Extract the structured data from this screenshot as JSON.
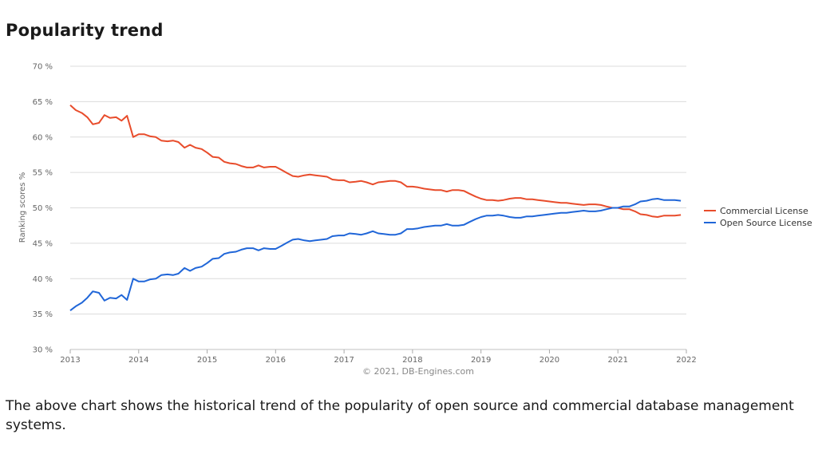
{
  "heading": "Popularity trend",
  "description": "The above chart shows the historical trend of the popularity of open source and commercial database management systems.",
  "chart_data": {
    "type": "line",
    "ylabel": "Ranking scores %",
    "credit": "© 2021, DB-Engines.com",
    "ylim": [
      30,
      70
    ],
    "xlim": [
      2013,
      2022
    ],
    "yticks": [
      {
        "v": 30,
        "label": "30 %"
      },
      {
        "v": 35,
        "label": "35 %"
      },
      {
        "v": 40,
        "label": "40 %"
      },
      {
        "v": 45,
        "label": "45 %"
      },
      {
        "v": 50,
        "label": "50 %"
      },
      {
        "v": 55,
        "label": "55 %"
      },
      {
        "v": 60,
        "label": "60 %"
      },
      {
        "v": 65,
        "label": "65 %"
      },
      {
        "v": 70,
        "label": "70 %"
      }
    ],
    "xticks": [
      {
        "v": 2013,
        "label": "2013"
      },
      {
        "v": 2014,
        "label": "2014"
      },
      {
        "v": 2015,
        "label": "2015"
      },
      {
        "v": 2016,
        "label": "2016"
      },
      {
        "v": 2017,
        "label": "2017"
      },
      {
        "v": 2018,
        "label": "2018"
      },
      {
        "v": 2019,
        "label": "2019"
      },
      {
        "v": 2020,
        "label": "2020"
      },
      {
        "v": 2021,
        "label": "2021"
      },
      {
        "v": 2022,
        "label": "2022"
      }
    ],
    "legend_position": "right",
    "series": [
      {
        "name": "Commercial License",
        "color": "#e84c2b",
        "points": [
          [
            2013.0,
            64.5
          ],
          [
            2013.08,
            63.8
          ],
          [
            2013.17,
            63.4
          ],
          [
            2013.25,
            62.8
          ],
          [
            2013.33,
            61.8
          ],
          [
            2013.42,
            62.0
          ],
          [
            2013.5,
            63.1
          ],
          [
            2013.58,
            62.7
          ],
          [
            2013.67,
            62.8
          ],
          [
            2013.75,
            62.3
          ],
          [
            2013.83,
            63.0
          ],
          [
            2013.92,
            60.0
          ],
          [
            2014.0,
            60.4
          ],
          [
            2014.08,
            60.4
          ],
          [
            2014.17,
            60.1
          ],
          [
            2014.25,
            60.0
          ],
          [
            2014.33,
            59.5
          ],
          [
            2014.42,
            59.4
          ],
          [
            2014.5,
            59.5
          ],
          [
            2014.58,
            59.3
          ],
          [
            2014.67,
            58.5
          ],
          [
            2014.75,
            58.9
          ],
          [
            2014.83,
            58.5
          ],
          [
            2014.92,
            58.3
          ],
          [
            2015.0,
            57.8
          ],
          [
            2015.08,
            57.2
          ],
          [
            2015.17,
            57.1
          ],
          [
            2015.25,
            56.5
          ],
          [
            2015.33,
            56.3
          ],
          [
            2015.42,
            56.2
          ],
          [
            2015.5,
            55.9
          ],
          [
            2015.58,
            55.7
          ],
          [
            2015.67,
            55.7
          ],
          [
            2015.75,
            56.0
          ],
          [
            2015.83,
            55.7
          ],
          [
            2015.92,
            55.8
          ],
          [
            2016.0,
            55.8
          ],
          [
            2016.08,
            55.4
          ],
          [
            2016.17,
            54.9
          ],
          [
            2016.25,
            54.5
          ],
          [
            2016.33,
            54.4
          ],
          [
            2016.42,
            54.6
          ],
          [
            2016.5,
            54.7
          ],
          [
            2016.58,
            54.6
          ],
          [
            2016.67,
            54.5
          ],
          [
            2016.75,
            54.4
          ],
          [
            2016.83,
            54.0
          ],
          [
            2016.92,
            53.9
          ],
          [
            2017.0,
            53.9
          ],
          [
            2017.08,
            53.6
          ],
          [
            2017.17,
            53.7
          ],
          [
            2017.25,
            53.8
          ],
          [
            2017.33,
            53.6
          ],
          [
            2017.42,
            53.3
          ],
          [
            2017.5,
            53.6
          ],
          [
            2017.58,
            53.7
          ],
          [
            2017.67,
            53.8
          ],
          [
            2017.75,
            53.8
          ],
          [
            2017.83,
            53.6
          ],
          [
            2017.92,
            53.0
          ],
          [
            2018.0,
            53.0
          ],
          [
            2018.08,
            52.9
          ],
          [
            2018.17,
            52.7
          ],
          [
            2018.25,
            52.6
          ],
          [
            2018.33,
            52.5
          ],
          [
            2018.42,
            52.5
          ],
          [
            2018.5,
            52.3
          ],
          [
            2018.58,
            52.5
          ],
          [
            2018.67,
            52.5
          ],
          [
            2018.75,
            52.4
          ],
          [
            2018.83,
            52.0
          ],
          [
            2018.92,
            51.6
          ],
          [
            2019.0,
            51.3
          ],
          [
            2019.08,
            51.1
          ],
          [
            2019.17,
            51.1
          ],
          [
            2019.25,
            51.0
          ],
          [
            2019.33,
            51.1
          ],
          [
            2019.42,
            51.3
          ],
          [
            2019.5,
            51.4
          ],
          [
            2019.58,
            51.4
          ],
          [
            2019.67,
            51.2
          ],
          [
            2019.75,
            51.2
          ],
          [
            2019.83,
            51.1
          ],
          [
            2019.92,
            51.0
          ],
          [
            2020.0,
            50.9
          ],
          [
            2020.08,
            50.8
          ],
          [
            2020.17,
            50.7
          ],
          [
            2020.25,
            50.7
          ],
          [
            2020.33,
            50.6
          ],
          [
            2020.42,
            50.5
          ],
          [
            2020.5,
            50.4
          ],
          [
            2020.58,
            50.5
          ],
          [
            2020.67,
            50.5
          ],
          [
            2020.75,
            50.4
          ],
          [
            2020.83,
            50.2
          ],
          [
            2020.92,
            50.0
          ],
          [
            2021.0,
            50.0
          ],
          [
            2021.08,
            49.8
          ],
          [
            2021.17,
            49.8
          ],
          [
            2021.25,
            49.5
          ],
          [
            2021.33,
            49.1
          ],
          [
            2021.42,
            49.0
          ],
          [
            2021.5,
            48.8
          ],
          [
            2021.58,
            48.7
          ],
          [
            2021.67,
            48.9
          ],
          [
            2021.75,
            48.9
          ],
          [
            2021.83,
            48.9
          ],
          [
            2021.92,
            49.0
          ]
        ]
      },
      {
        "name": "Open Source License",
        "color": "#2066d8",
        "points": [
          [
            2013.0,
            35.5
          ],
          [
            2013.08,
            36.1
          ],
          [
            2013.17,
            36.6
          ],
          [
            2013.25,
            37.3
          ],
          [
            2013.33,
            38.2
          ],
          [
            2013.42,
            38.0
          ],
          [
            2013.5,
            36.9
          ],
          [
            2013.58,
            37.3
          ],
          [
            2013.67,
            37.2
          ],
          [
            2013.75,
            37.7
          ],
          [
            2013.83,
            37.0
          ],
          [
            2013.92,
            40.0
          ],
          [
            2014.0,
            39.6
          ],
          [
            2014.08,
            39.6
          ],
          [
            2014.17,
            39.9
          ],
          [
            2014.25,
            40.0
          ],
          [
            2014.33,
            40.5
          ],
          [
            2014.42,
            40.6
          ],
          [
            2014.5,
            40.5
          ],
          [
            2014.58,
            40.7
          ],
          [
            2014.67,
            41.5
          ],
          [
            2014.75,
            41.1
          ],
          [
            2014.83,
            41.5
          ],
          [
            2014.92,
            41.7
          ],
          [
            2015.0,
            42.2
          ],
          [
            2015.08,
            42.8
          ],
          [
            2015.17,
            42.9
          ],
          [
            2015.25,
            43.5
          ],
          [
            2015.33,
            43.7
          ],
          [
            2015.42,
            43.8
          ],
          [
            2015.5,
            44.1
          ],
          [
            2015.58,
            44.3
          ],
          [
            2015.67,
            44.3
          ],
          [
            2015.75,
            44.0
          ],
          [
            2015.83,
            44.3
          ],
          [
            2015.92,
            44.2
          ],
          [
            2016.0,
            44.2
          ],
          [
            2016.08,
            44.6
          ],
          [
            2016.17,
            45.1
          ],
          [
            2016.25,
            45.5
          ],
          [
            2016.33,
            45.6
          ],
          [
            2016.42,
            45.4
          ],
          [
            2016.5,
            45.3
          ],
          [
            2016.58,
            45.4
          ],
          [
            2016.67,
            45.5
          ],
          [
            2016.75,
            45.6
          ],
          [
            2016.83,
            46.0
          ],
          [
            2016.92,
            46.1
          ],
          [
            2017.0,
            46.1
          ],
          [
            2017.08,
            46.4
          ],
          [
            2017.17,
            46.3
          ],
          [
            2017.25,
            46.2
          ],
          [
            2017.33,
            46.4
          ],
          [
            2017.42,
            46.7
          ],
          [
            2017.5,
            46.4
          ],
          [
            2017.58,
            46.3
          ],
          [
            2017.67,
            46.2
          ],
          [
            2017.75,
            46.2
          ],
          [
            2017.83,
            46.4
          ],
          [
            2017.92,
            47.0
          ],
          [
            2018.0,
            47.0
          ],
          [
            2018.08,
            47.1
          ],
          [
            2018.17,
            47.3
          ],
          [
            2018.25,
            47.4
          ],
          [
            2018.33,
            47.5
          ],
          [
            2018.42,
            47.5
          ],
          [
            2018.5,
            47.7
          ],
          [
            2018.58,
            47.5
          ],
          [
            2018.67,
            47.5
          ],
          [
            2018.75,
            47.6
          ],
          [
            2018.83,
            48.0
          ],
          [
            2018.92,
            48.4
          ],
          [
            2019.0,
            48.7
          ],
          [
            2019.08,
            48.9
          ],
          [
            2019.17,
            48.9
          ],
          [
            2019.25,
            49.0
          ],
          [
            2019.33,
            48.9
          ],
          [
            2019.42,
            48.7
          ],
          [
            2019.5,
            48.6
          ],
          [
            2019.58,
            48.6
          ],
          [
            2019.67,
            48.8
          ],
          [
            2019.75,
            48.8
          ],
          [
            2019.83,
            48.9
          ],
          [
            2019.92,
            49.0
          ],
          [
            2020.0,
            49.1
          ],
          [
            2020.08,
            49.2
          ],
          [
            2020.17,
            49.3
          ],
          [
            2020.25,
            49.3
          ],
          [
            2020.33,
            49.4
          ],
          [
            2020.42,
            49.5
          ],
          [
            2020.5,
            49.6
          ],
          [
            2020.58,
            49.5
          ],
          [
            2020.67,
            49.5
          ],
          [
            2020.75,
            49.6
          ],
          [
            2020.83,
            49.8
          ],
          [
            2020.92,
            50.0
          ],
          [
            2021.0,
            50.0
          ],
          [
            2021.08,
            50.2
          ],
          [
            2021.17,
            50.2
          ],
          [
            2021.25,
            50.5
          ],
          [
            2021.33,
            50.9
          ],
          [
            2021.42,
            51.0
          ],
          [
            2021.5,
            51.2
          ],
          [
            2021.58,
            51.3
          ],
          [
            2021.67,
            51.1
          ],
          [
            2021.75,
            51.1
          ],
          [
            2021.83,
            51.1
          ],
          [
            2021.92,
            51.0
          ]
        ]
      }
    ]
  }
}
